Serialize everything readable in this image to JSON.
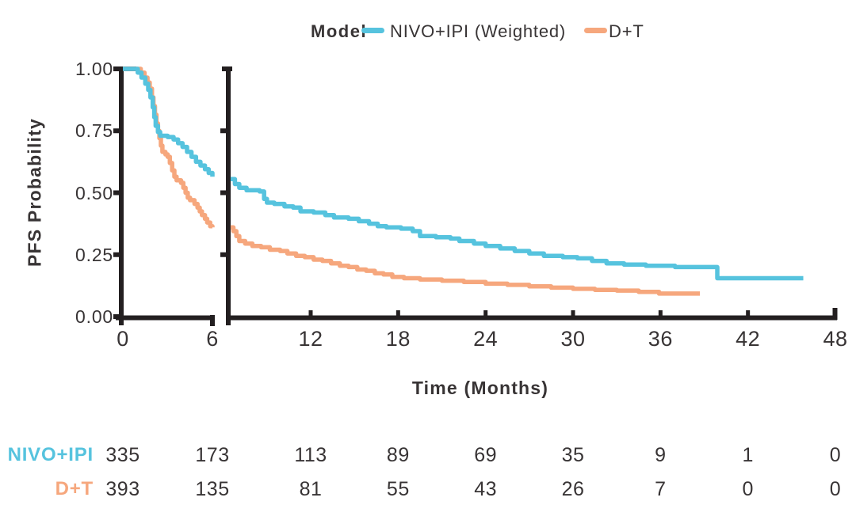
{
  "legend": {
    "title": "Model",
    "items": [
      {
        "label": "NIVO+IPI (Weighted)",
        "color": "#56c3de"
      },
      {
        "label": "D+T",
        "color": "#f6a77d"
      }
    ]
  },
  "axes": {
    "y_label": "PFS Probability",
    "x_label": "Time (Months)",
    "axis_color": "#231f20",
    "text_color": "#383435",
    "y_ticks": [
      {
        "label": "1.00",
        "value": 1.0
      },
      {
        "label": "0.75",
        "value": 0.75
      },
      {
        "label": "0.50",
        "value": 0.5
      },
      {
        "label": "0.25",
        "value": 0.25
      },
      {
        "label": "0.00",
        "value": 0.0
      }
    ],
    "x_ticks": [
      {
        "label": "0",
        "value": 0
      },
      {
        "label": "6",
        "value": 6
      },
      {
        "label": "12",
        "value": 12
      },
      {
        "label": "18",
        "value": 18
      },
      {
        "label": "24",
        "value": 24
      },
      {
        "label": "30",
        "value": 30
      },
      {
        "label": "36",
        "value": 36
      },
      {
        "label": "42",
        "value": 42
      },
      {
        "label": "48",
        "value": 48
      }
    ]
  },
  "chart_data": {
    "type": "line",
    "subtype": "kaplan_meier_step",
    "title": "",
    "xlabel": "Time (Months)",
    "ylabel": "PFS Probability",
    "ylim": [
      0,
      1
    ],
    "xlim": [
      0,
      48
    ],
    "x_axis_break_between": [
      6,
      6.5
    ],
    "grid": false,
    "legend_position": "top",
    "series": [
      {
        "name": "NIVO+IPI (Weighted)",
        "color": "#56c3de",
        "left_panel_points": [
          [
            0,
            1.0
          ],
          [
            0.75,
            1.0
          ],
          [
            1.0,
            0.985
          ],
          [
            1.25,
            0.965
          ],
          [
            1.5,
            0.94
          ],
          [
            1.7,
            0.915
          ],
          [
            1.85,
            0.885
          ],
          [
            2.0,
            0.845
          ],
          [
            2.1,
            0.805
          ],
          [
            2.2,
            0.77
          ],
          [
            2.35,
            0.745
          ],
          [
            2.5,
            0.73
          ],
          [
            3.0,
            0.725
          ],
          [
            3.4,
            0.715
          ],
          [
            3.7,
            0.7
          ],
          [
            4.0,
            0.685
          ],
          [
            4.3,
            0.665
          ],
          [
            4.6,
            0.645
          ],
          [
            4.9,
            0.625
          ],
          [
            5.2,
            0.61
          ],
          [
            5.5,
            0.595
          ],
          [
            5.75,
            0.58
          ],
          [
            6.0,
            0.565
          ]
        ],
        "right_panel_points": [
          [
            6.5,
            0.555
          ],
          [
            6.8,
            0.535
          ],
          [
            7.1,
            0.52
          ],
          [
            7.6,
            0.51
          ],
          [
            8.5,
            0.505
          ],
          [
            8.8,
            0.475
          ],
          [
            9.0,
            0.46
          ],
          [
            9.5,
            0.455
          ],
          [
            10.2,
            0.445
          ],
          [
            10.8,
            0.44
          ],
          [
            11.3,
            0.425
          ],
          [
            12.2,
            0.42
          ],
          [
            13.0,
            0.41
          ],
          [
            13.6,
            0.4
          ],
          [
            14.6,
            0.395
          ],
          [
            15.3,
            0.385
          ],
          [
            16.0,
            0.375
          ],
          [
            16.6,
            0.365
          ],
          [
            17.2,
            0.36
          ],
          [
            18.2,
            0.355
          ],
          [
            19.0,
            0.345
          ],
          [
            19.5,
            0.325
          ],
          [
            20.6,
            0.32
          ],
          [
            21.6,
            0.315
          ],
          [
            22.2,
            0.305
          ],
          [
            23.2,
            0.295
          ],
          [
            24.0,
            0.285
          ],
          [
            25.0,
            0.275
          ],
          [
            26.0,
            0.265
          ],
          [
            27.0,
            0.255
          ],
          [
            28.0,
            0.245
          ],
          [
            29.3,
            0.24
          ],
          [
            30.3,
            0.235
          ],
          [
            31.3,
            0.225
          ],
          [
            32.3,
            0.215
          ],
          [
            33.5,
            0.21
          ],
          [
            35.0,
            0.205
          ],
          [
            37.0,
            0.2
          ],
          [
            39.9,
            0.155
          ],
          [
            45.8,
            0.155
          ]
        ]
      },
      {
        "name": "D+T",
        "color": "#f6a77d",
        "left_panel_points": [
          [
            0,
            1.0
          ],
          [
            0.95,
            1.0
          ],
          [
            1.2,
            0.985
          ],
          [
            1.45,
            0.965
          ],
          [
            1.65,
            0.945
          ],
          [
            1.8,
            0.92
          ],
          [
            1.95,
            0.885
          ],
          [
            2.05,
            0.85
          ],
          [
            2.15,
            0.815
          ],
          [
            2.25,
            0.78
          ],
          [
            2.35,
            0.75
          ],
          [
            2.45,
            0.72
          ],
          [
            2.55,
            0.69
          ],
          [
            2.65,
            0.665
          ],
          [
            2.85,
            0.655
          ],
          [
            3.0,
            0.645
          ],
          [
            3.15,
            0.62
          ],
          [
            3.3,
            0.59
          ],
          [
            3.45,
            0.565
          ],
          [
            3.6,
            0.55
          ],
          [
            3.9,
            0.54
          ],
          [
            4.05,
            0.52
          ],
          [
            4.2,
            0.5
          ],
          [
            4.35,
            0.48
          ],
          [
            4.5,
            0.47
          ],
          [
            4.8,
            0.455
          ],
          [
            5.0,
            0.44
          ],
          [
            5.15,
            0.425
          ],
          [
            5.3,
            0.41
          ],
          [
            5.5,
            0.395
          ],
          [
            5.65,
            0.38
          ],
          [
            5.85,
            0.365
          ],
          [
            6.0,
            0.36
          ]
        ],
        "right_panel_points": [
          [
            6.5,
            0.36
          ],
          [
            6.7,
            0.345
          ],
          [
            6.9,
            0.325
          ],
          [
            7.1,
            0.305
          ],
          [
            7.5,
            0.295
          ],
          [
            8.0,
            0.285
          ],
          [
            8.6,
            0.28
          ],
          [
            9.2,
            0.27
          ],
          [
            9.9,
            0.265
          ],
          [
            10.4,
            0.255
          ],
          [
            11.0,
            0.245
          ],
          [
            11.6,
            0.24
          ],
          [
            12.2,
            0.23
          ],
          [
            12.8,
            0.225
          ],
          [
            13.4,
            0.215
          ],
          [
            14.0,
            0.205
          ],
          [
            14.6,
            0.2
          ],
          [
            15.2,
            0.19
          ],
          [
            15.8,
            0.185
          ],
          [
            16.4,
            0.175
          ],
          [
            17.0,
            0.17
          ],
          [
            17.6,
            0.16
          ],
          [
            18.4,
            0.155
          ],
          [
            19.5,
            0.15
          ],
          [
            21.0,
            0.145
          ],
          [
            22.5,
            0.14
          ],
          [
            24.0,
            0.133
          ],
          [
            25.5,
            0.128
          ],
          [
            27.0,
            0.122
          ],
          [
            28.5,
            0.117
          ],
          [
            30.0,
            0.112
          ],
          [
            31.5,
            0.108
          ],
          [
            33.0,
            0.105
          ],
          [
            34.5,
            0.1
          ],
          [
            35.9,
            0.093
          ],
          [
            38.7,
            0.093
          ]
        ]
      }
    ]
  },
  "risk_table": {
    "times": [
      0,
      6,
      12,
      18,
      24,
      30,
      36,
      42,
      48
    ],
    "rows": [
      {
        "label": "NIVO+IPI",
        "color": "#56c3de",
        "counts": [
          335,
          173,
          113,
          89,
          69,
          35,
          9,
          1,
          0
        ]
      },
      {
        "label": "D+T",
        "color": "#f6a77d",
        "counts": [
          393,
          135,
          81,
          55,
          43,
          26,
          7,
          0,
          0
        ]
      }
    ]
  }
}
